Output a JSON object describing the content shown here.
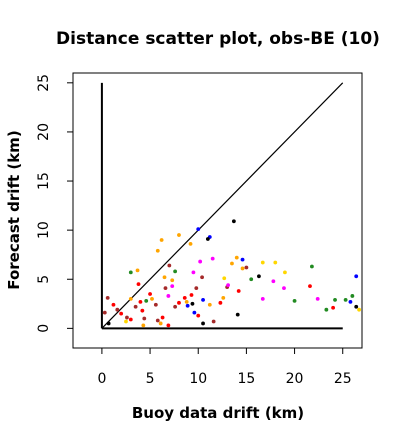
{
  "chart_data": {
    "type": "scatter",
    "title": "Distance scatter plot, obs-BE (10)",
    "xlabel": "Buoy data drift (km)",
    "ylabel": "Forecast drift (km)",
    "xlim": [
      -3,
      27
    ],
    "ylim": [
      -2,
      26
    ],
    "x_ticks": [
      0,
      5,
      10,
      15,
      20,
      25
    ],
    "y_ticks": [
      0,
      5,
      10,
      15,
      20,
      25
    ],
    "reference_lines": [
      {
        "name": "diagonal",
        "x": [
          0,
          25
        ],
        "y": [
          0,
          25
        ]
      },
      {
        "name": "x-axis-reference",
        "x": [
          0,
          25
        ],
        "y": [
          0,
          0
        ]
      },
      {
        "name": "y-axis-reference",
        "x": [
          0,
          0
        ],
        "y": [
          0,
          25
        ]
      }
    ],
    "series": [
      {
        "color": "#FFA500",
        "points": [
          [
            5.8,
            7.9
          ],
          [
            6.2,
            9.0
          ],
          [
            8.0,
            9.5
          ],
          [
            9.2,
            8.6
          ],
          [
            6.5,
            5.2
          ],
          [
            7.3,
            4.9
          ],
          [
            3.7,
            5.9
          ],
          [
            5.2,
            3.0
          ],
          [
            6.1,
            0.5
          ],
          [
            4.3,
            0.3
          ],
          [
            13.5,
            6.6
          ],
          [
            14.0,
            7.2
          ],
          [
            14.6,
            6.1
          ],
          [
            11.2,
            2.4
          ],
          [
            3.0,
            3.0
          ],
          [
            8.8,
            2.7
          ],
          [
            12.6,
            3.1
          ]
        ]
      },
      {
        "color": "#FF0000",
        "points": [
          [
            3.0,
            0.9
          ],
          [
            4.2,
            1.8
          ],
          [
            5.0,
            3.5
          ],
          [
            6.3,
            1.1
          ],
          [
            6.9,
            0.3
          ],
          [
            8.0,
            2.6
          ],
          [
            8.6,
            3.1
          ],
          [
            9.3,
            3.4
          ],
          [
            10.0,
            1.3
          ],
          [
            12.3,
            2.6
          ],
          [
            14.2,
            3.8
          ],
          [
            21.6,
            4.3
          ],
          [
            24.0,
            2.1
          ],
          [
            2.0,
            1.5
          ],
          [
            1.2,
            2.4
          ],
          [
            3.8,
            4.5
          ],
          [
            4.0,
            2.7
          ]
        ]
      },
      {
        "color": "#A52A2A",
        "points": [
          [
            0.6,
            3.1
          ],
          [
            0.3,
            1.6
          ],
          [
            1.6,
            1.9
          ],
          [
            3.5,
            2.2
          ],
          [
            4.4,
            1.0
          ],
          [
            5.6,
            2.4
          ],
          [
            6.6,
            4.1
          ],
          [
            7.6,
            2.2
          ],
          [
            9.8,
            4.1
          ],
          [
            10.4,
            5.2
          ],
          [
            11.6,
            0.7
          ],
          [
            13.0,
            4.2
          ],
          [
            15.0,
            6.2
          ],
          [
            5.8,
            0.8
          ],
          [
            2.6,
            1.1
          ],
          [
            7.0,
            6.4
          ]
        ]
      },
      {
        "color": "#0000FF",
        "points": [
          [
            10.0,
            10.1
          ],
          [
            11.2,
            9.3
          ],
          [
            10.5,
            2.9
          ],
          [
            9.6,
            1.6
          ],
          [
            14.6,
            7.0
          ],
          [
            26.4,
            5.3
          ],
          [
            25.8,
            2.7
          ],
          [
            8.9,
            2.3
          ]
        ]
      },
      {
        "color": "#000000",
        "points": [
          [
            13.7,
            10.9
          ],
          [
            11.0,
            9.1
          ],
          [
            16.3,
            5.3
          ],
          [
            14.1,
            1.4
          ],
          [
            10.5,
            0.5
          ],
          [
            26.4,
            2.2
          ],
          [
            9.4,
            2.5
          ],
          [
            0.7,
            0.5
          ]
        ]
      },
      {
        "color": "#FF00FF",
        "points": [
          [
            7.3,
            4.3
          ],
          [
            9.5,
            5.7
          ],
          [
            11.5,
            7.1
          ],
          [
            13.1,
            4.4
          ],
          [
            16.7,
            3.0
          ],
          [
            17.8,
            4.8
          ],
          [
            18.9,
            4.1
          ],
          [
            22.4,
            3.0
          ],
          [
            6.9,
            3.3
          ],
          [
            10.2,
            6.8
          ]
        ]
      },
      {
        "color": "#228B22",
        "points": [
          [
            3.0,
            5.7
          ],
          [
            4.6,
            2.8
          ],
          [
            7.6,
            5.8
          ],
          [
            15.5,
            5.0
          ],
          [
            20.0,
            2.8
          ],
          [
            21.8,
            6.3
          ],
          [
            24.2,
            2.9
          ],
          [
            23.3,
            1.9
          ],
          [
            26.0,
            3.3
          ],
          [
            25.3,
            2.9
          ]
        ]
      },
      {
        "color": "#FFD700",
        "points": [
          [
            16.7,
            6.7
          ],
          [
            18.0,
            6.7
          ],
          [
            19.0,
            5.7
          ],
          [
            12.7,
            5.1
          ],
          [
            26.7,
            1.9
          ],
          [
            2.5,
            0.7
          ]
        ]
      }
    ]
  }
}
